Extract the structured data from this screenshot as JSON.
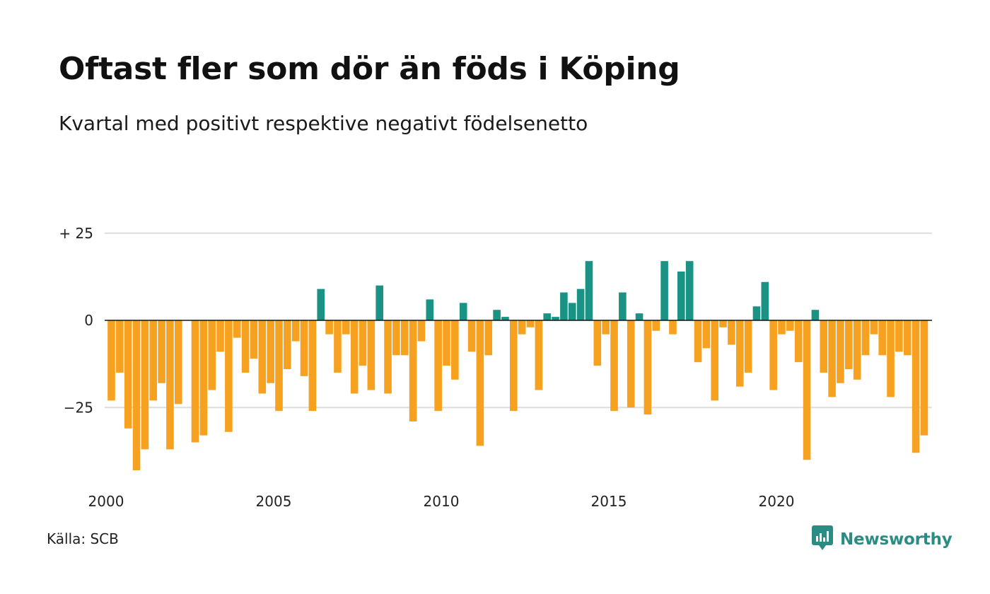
{
  "title": "Oftast fler som dör än föds i Köping",
  "subtitle": "Kvartal med positivt respektive negativt födelsenetto",
  "source": "Källa: SCB",
  "brand": {
    "name": "Newsworthy",
    "icon": "newsworthy-logo-icon"
  },
  "colors": {
    "positive": "#1a9385",
    "negative": "#f6a11f",
    "grid": "#dddddd",
    "zero": "#111111"
  },
  "chart_data": {
    "type": "bar",
    "x_start": "2000 Q1",
    "x_ticks": [
      "2000",
      "2005",
      "2010",
      "2015",
      "2020"
    ],
    "y_ticks": [
      {
        "value": 25,
        "label": "+ 25"
      },
      {
        "value": 0,
        "label": "0"
      },
      {
        "value": -25,
        "label": "−25"
      }
    ],
    "ylim": [
      -43,
      25
    ],
    "grid": true,
    "values": [
      -23,
      -15,
      -31,
      -43,
      -37,
      -23,
      -18,
      -37,
      -24,
      0,
      -35,
      -33,
      -20,
      -9,
      -32,
      -5,
      -15,
      -11,
      -21,
      -18,
      -26,
      -14,
      -6,
      -16,
      -26,
      9,
      -4,
      -15,
      -4,
      -21,
      -13,
      -20,
      10,
      -21,
      -10,
      -10,
      -29,
      -6,
      6,
      -26,
      -13,
      -17,
      5,
      -9,
      -36,
      -10,
      3,
      1,
      -26,
      -4,
      -2,
      -20,
      2,
      1,
      8,
      5,
      9,
      17,
      -13,
      -4,
      -26,
      8,
      -25,
      2,
      -27,
      -3,
      17,
      -4,
      14,
      17,
      -12,
      -8,
      -23,
      -2,
      -7,
      -19,
      -15,
      4,
      11,
      -20,
      -4,
      -3,
      -12,
      -40,
      3,
      -15,
      -22,
      -18,
      -14,
      -17,
      -10,
      -4,
      -10,
      -22,
      -9,
      -10,
      -38,
      -33
    ]
  }
}
